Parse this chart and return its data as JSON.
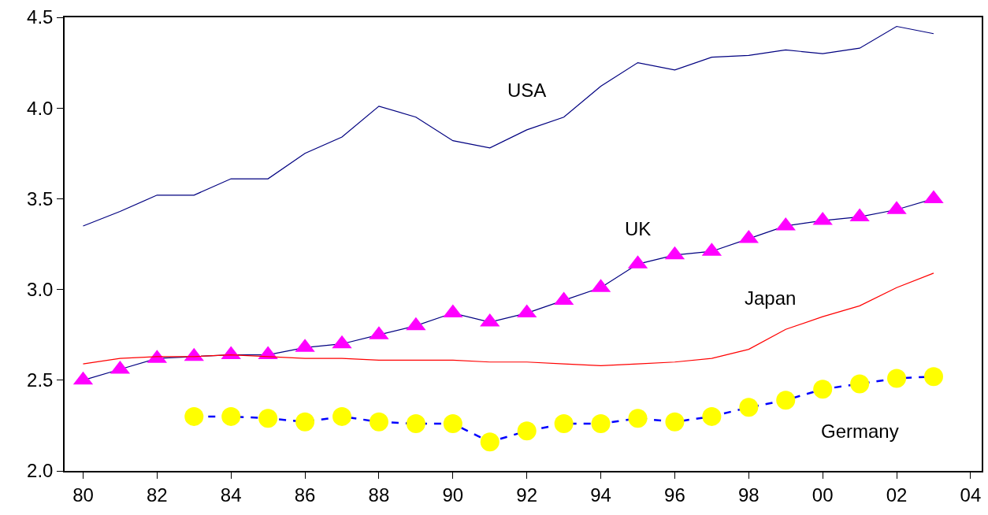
{
  "chart_data": {
    "type": "line",
    "x": [
      1980,
      1981,
      1982,
      1983,
      1984,
      1985,
      1986,
      1987,
      1988,
      1989,
      1990,
      1991,
      1992,
      1993,
      1994,
      1995,
      1996,
      1997,
      1998,
      1999,
      2000,
      2001,
      2002,
      2003
    ],
    "series": [
      {
        "name": "USA",
        "color": "#000080",
        "marker": "none",
        "line_style": "solid",
        "values": [
          3.35,
          3.43,
          3.52,
          3.52,
          3.61,
          3.61,
          3.75,
          3.84,
          4.01,
          3.95,
          3.82,
          3.78,
          3.88,
          3.95,
          4.12,
          4.25,
          4.21,
          4.28,
          4.29,
          4.32,
          4.3,
          4.33,
          4.45,
          4.41
        ]
      },
      {
        "name": "UK",
        "color": "#ff00ff",
        "marker": "triangle",
        "line_style": "solid",
        "values": [
          2.5,
          2.56,
          2.62,
          2.63,
          2.64,
          2.64,
          2.68,
          2.7,
          2.75,
          2.8,
          2.87,
          2.82,
          2.87,
          2.94,
          3.01,
          3.14,
          3.19,
          3.21,
          3.28,
          3.35,
          3.38,
          3.4,
          3.44,
          3.5
        ]
      },
      {
        "name": "Japan",
        "color": "#ff0000",
        "marker": "none",
        "line_style": "solid",
        "values": [
          2.59,
          2.62,
          2.63,
          2.63,
          2.64,
          2.63,
          2.62,
          2.62,
          2.61,
          2.61,
          2.61,
          2.6,
          2.6,
          2.59,
          2.58,
          2.59,
          2.6,
          2.62,
          2.67,
          2.78,
          2.85,
          2.91,
          3.01,
          3.09
        ]
      },
      {
        "name": "Germany",
        "color": "#ffff00",
        "marker": "circle",
        "line_style": "dashed",
        "values": [
          null,
          null,
          null,
          2.3,
          2.3,
          2.29,
          2.27,
          2.3,
          2.27,
          2.26,
          2.26,
          2.16,
          2.22,
          2.26,
          2.26,
          2.29,
          2.27,
          2.3,
          2.35,
          2.39,
          2.45,
          2.48,
          2.51,
          2.52
        ]
      }
    ],
    "xlim": [
      1979.5,
      2004.3
    ],
    "xticks": [
      {
        "value": 1980,
        "label": "80"
      },
      {
        "value": 1982,
        "label": "82"
      },
      {
        "value": 1984,
        "label": "84"
      },
      {
        "value": 1986,
        "label": "86"
      },
      {
        "value": 1988,
        "label": "88"
      },
      {
        "value": 1990,
        "label": "90"
      },
      {
        "value": 1992,
        "label": "92"
      },
      {
        "value": 1994,
        "label": "94"
      },
      {
        "value": 1996,
        "label": "96"
      },
      {
        "value": 1998,
        "label": "98"
      },
      {
        "value": 2000,
        "label": "00"
      },
      {
        "value": 2002,
        "label": "02"
      },
      {
        "value": 2004,
        "label": "04"
      }
    ],
    "ylim": [
      2.0,
      4.5
    ],
    "yticks": [
      {
        "value": 2.0,
        "label": "2.0"
      },
      {
        "value": 2.5,
        "label": "2.5"
      },
      {
        "value": 3.0,
        "label": "3.0"
      },
      {
        "value": 3.5,
        "label": "3.5"
      },
      {
        "value": 4.0,
        "label": "4.0"
      },
      {
        "value": 4.5,
        "label": "4.5"
      }
    ],
    "grid": false,
    "legend": false
  }
}
